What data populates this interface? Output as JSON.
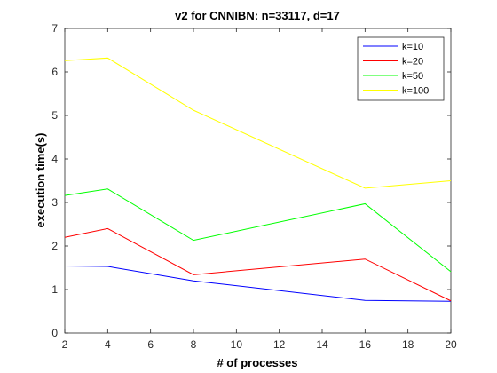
{
  "chart_data": {
    "type": "line",
    "title": "v2 for CNNIBN: n=33117, d=17",
    "xlabel": "# of processes",
    "ylabel": "execution time(s)",
    "x": [
      2,
      4,
      8,
      16,
      20
    ],
    "xlim": [
      2,
      20
    ],
    "ylim": [
      0,
      7
    ],
    "xticks": [
      2,
      4,
      6,
      8,
      10,
      12,
      14,
      16,
      18,
      20
    ],
    "yticks": [
      0,
      1,
      2,
      3,
      4,
      5,
      6,
      7
    ],
    "grid": false,
    "legend_position": "top-right",
    "series": [
      {
        "name": "k=10",
        "color": "#0000ff",
        "values": [
          1.54,
          1.53,
          1.2,
          0.75,
          0.73
        ]
      },
      {
        "name": "k=20",
        "color": "#ff0000",
        "values": [
          2.2,
          2.4,
          1.34,
          1.7,
          0.74
        ]
      },
      {
        "name": "k=50",
        "color": "#00ff00",
        "values": [
          3.16,
          3.31,
          2.13,
          2.97,
          1.41
        ]
      },
      {
        "name": "k=100",
        "color": "#ffff00",
        "values": [
          6.26,
          6.32,
          5.12,
          3.33,
          3.5
        ]
      }
    ]
  }
}
